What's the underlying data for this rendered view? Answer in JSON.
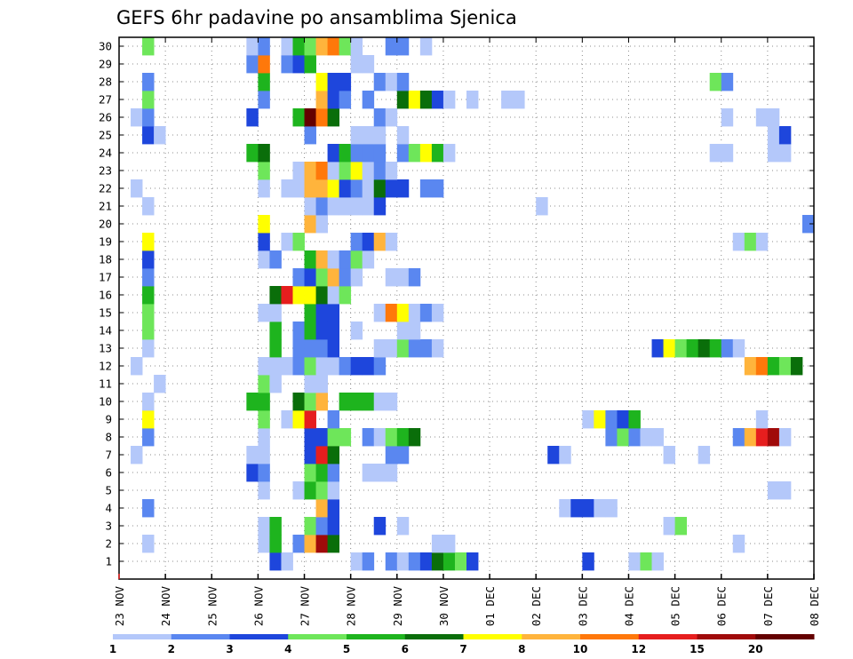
{
  "chart_data": {
    "type": "heatmap",
    "title": "GEFS 6hr padavine po ansamblima Sjenica",
    "xlabel": "",
    "ylabel": "",
    "x_tick_labels": [
      "23 NOV",
      "24 NOV",
      "25 NOV",
      "26 NOV",
      "27 NOV",
      "28 NOV",
      "29 NOV",
      "30 NOV",
      "01 DEC",
      "02 DEC",
      "03 DEC",
      "04 DEC",
      "05 DEC",
      "06 DEC",
      "07 DEC",
      "08 DEC"
    ],
    "y_tick_labels": [
      "1",
      "2",
      "3",
      "4",
      "5",
      "6",
      "7",
      "8",
      "9",
      "10",
      "11",
      "12",
      "13",
      "14",
      "15",
      "16",
      "17",
      "18",
      "19",
      "20",
      "21",
      "22",
      "23",
      "24",
      "25",
      "26",
      "27",
      "28",
      "29",
      "30"
    ],
    "x_range_steps": [
      0,
      60
    ],
    "y_range_members": [
      0,
      30
    ],
    "time_step_hours": 6,
    "grid": "dotted",
    "legend_placement": "bottom",
    "colorbar": {
      "labels": [
        "1",
        "2",
        "3",
        "4",
        "5",
        "6",
        "7",
        "8",
        "10",
        "12",
        "15",
        "20"
      ],
      "bin_colors": [
        "#b4c8fa",
        "#5a87f0",
        "#1e46dc",
        "#6ee65a",
        "#1eb41e",
        "#0a6e0a",
        "#ffff00",
        "#ffb43c",
        "#ff780a",
        "#e61e1e",
        "#a00a0a",
        "#640000"
      ]
    },
    "level_colors": [
      "#b4c8fa",
      "#5a87f0",
      "#1e46dc",
      "#6ee65a",
      "#1eb41e",
      "#0a6e0a",
      "#ffff00",
      "#ffb43c",
      "#ff780a",
      "#e61e1e",
      "#a00a0a",
      "#640000"
    ],
    "cells_format": "[member, time_step_index, level_index]",
    "cells": [
      [
        1,
        13,
        2
      ],
      [
        1,
        14,
        0
      ],
      [
        1,
        20,
        0
      ],
      [
        1,
        21,
        1
      ],
      [
        1,
        23,
        1
      ],
      [
        1,
        24,
        0
      ],
      [
        1,
        25,
        1
      ],
      [
        1,
        26,
        2
      ],
      [
        1,
        27,
        5
      ],
      [
        1,
        28,
        4
      ],
      [
        1,
        29,
        3
      ],
      [
        1,
        30,
        2
      ],
      [
        1,
        40,
        2
      ],
      [
        1,
        44,
        0
      ],
      [
        1,
        45,
        3
      ],
      [
        1,
        46,
        0
      ],
      [
        2,
        2,
        0
      ],
      [
        2,
        12,
        0
      ],
      [
        2,
        13,
        4
      ],
      [
        2,
        15,
        1
      ],
      [
        2,
        16,
        7
      ],
      [
        2,
        17,
        10
      ],
      [
        2,
        18,
        5
      ],
      [
        2,
        27,
        0
      ],
      [
        2,
        28,
        0
      ],
      [
        2,
        53,
        0
      ],
      [
        3,
        12,
        0
      ],
      [
        3,
        13,
        4
      ],
      [
        3,
        16,
        3
      ],
      [
        3,
        17,
        1
      ],
      [
        3,
        18,
        2
      ],
      [
        3,
        22,
        2
      ],
      [
        3,
        24,
        0
      ],
      [
        3,
        47,
        0
      ],
      [
        3,
        48,
        3
      ],
      [
        4,
        2,
        1
      ],
      [
        4,
        17,
        7
      ],
      [
        4,
        18,
        2
      ],
      [
        4,
        38,
        0
      ],
      [
        4,
        39,
        2
      ],
      [
        4,
        40,
        2
      ],
      [
        4,
        41,
        0
      ],
      [
        4,
        42,
        0
      ],
      [
        5,
        12,
        0
      ],
      [
        5,
        15,
        0
      ],
      [
        5,
        16,
        4
      ],
      [
        5,
        17,
        3
      ],
      [
        5,
        18,
        0
      ],
      [
        5,
        56,
        0
      ],
      [
        5,
        57,
        0
      ],
      [
        6,
        11,
        2
      ],
      [
        6,
        12,
        1
      ],
      [
        6,
        16,
        3
      ],
      [
        6,
        17,
        4
      ],
      [
        6,
        18,
        1
      ],
      [
        6,
        21,
        0
      ],
      [
        6,
        22,
        0
      ],
      [
        6,
        23,
        0
      ],
      [
        7,
        1,
        0
      ],
      [
        7,
        11,
        0
      ],
      [
        7,
        12,
        0
      ],
      [
        7,
        16,
        2
      ],
      [
        7,
        17,
        9
      ],
      [
        7,
        18,
        5
      ],
      [
        7,
        23,
        1
      ],
      [
        7,
        24,
        1
      ],
      [
        7,
        37,
        2
      ],
      [
        7,
        38,
        0
      ],
      [
        7,
        47,
        0
      ],
      [
        7,
        50,
        0
      ],
      [
        8,
        2,
        1
      ],
      [
        8,
        12,
        0
      ],
      [
        8,
        16,
        2
      ],
      [
        8,
        17,
        2
      ],
      [
        8,
        18,
        3
      ],
      [
        8,
        19,
        3
      ],
      [
        8,
        21,
        1
      ],
      [
        8,
        22,
        0
      ],
      [
        8,
        23,
        3
      ],
      [
        8,
        24,
        4
      ],
      [
        8,
        25,
        5
      ],
      [
        8,
        42,
        1
      ],
      [
        8,
        43,
        3
      ],
      [
        8,
        44,
        1
      ],
      [
        8,
        45,
        0
      ],
      [
        8,
        46,
        0
      ],
      [
        8,
        53,
        1
      ],
      [
        8,
        54,
        7
      ],
      [
        8,
        55,
        9
      ],
      [
        8,
        56,
        10
      ],
      [
        8,
        57,
        0
      ],
      [
        9,
        2,
        6
      ],
      [
        9,
        12,
        3
      ],
      [
        9,
        14,
        0
      ],
      [
        9,
        15,
        6
      ],
      [
        9,
        16,
        9
      ],
      [
        9,
        18,
        1
      ],
      [
        9,
        40,
        0
      ],
      [
        9,
        41,
        6
      ],
      [
        9,
        42,
        1
      ],
      [
        9,
        43,
        2
      ],
      [
        9,
        44,
        4
      ],
      [
        9,
        55,
        0
      ],
      [
        10,
        2,
        0
      ],
      [
        10,
        11,
        4
      ],
      [
        10,
        12,
        4
      ],
      [
        10,
        15,
        5
      ],
      [
        10,
        16,
        3
      ],
      [
        10,
        17,
        7
      ],
      [
        10,
        19,
        4
      ],
      [
        10,
        20,
        4
      ],
      [
        10,
        21,
        4
      ],
      [
        10,
        22,
        0
      ],
      [
        10,
        23,
        0
      ],
      [
        11,
        3,
        0
      ],
      [
        11,
        12,
        3
      ],
      [
        11,
        13,
        0
      ],
      [
        11,
        16,
        0
      ],
      [
        11,
        17,
        0
      ],
      [
        12,
        1,
        0
      ],
      [
        12,
        12,
        0
      ],
      [
        12,
        13,
        0
      ],
      [
        12,
        14,
        0
      ],
      [
        12,
        15,
        1
      ],
      [
        12,
        16,
        3
      ],
      [
        12,
        17,
        0
      ],
      [
        12,
        18,
        0
      ],
      [
        12,
        19,
        1
      ],
      [
        12,
        20,
        2
      ],
      [
        12,
        21,
        2
      ],
      [
        12,
        22,
        1
      ],
      [
        12,
        54,
        7
      ],
      [
        12,
        55,
        8
      ],
      [
        12,
        56,
        4
      ],
      [
        12,
        57,
        3
      ],
      [
        12,
        58,
        5
      ],
      [
        13,
        2,
        0
      ],
      [
        13,
        13,
        4
      ],
      [
        13,
        15,
        1
      ],
      [
        13,
        16,
        1
      ],
      [
        13,
        17,
        1
      ],
      [
        13,
        18,
        2
      ],
      [
        13,
        22,
        0
      ],
      [
        13,
        23,
        0
      ],
      [
        13,
        24,
        3
      ],
      [
        13,
        25,
        1
      ],
      [
        13,
        26,
        1
      ],
      [
        13,
        27,
        0
      ],
      [
        13,
        46,
        2
      ],
      [
        13,
        47,
        6
      ],
      [
        13,
        48,
        3
      ],
      [
        13,
        49,
        4
      ],
      [
        13,
        50,
        5
      ],
      [
        13,
        51,
        4
      ],
      [
        13,
        52,
        1
      ],
      [
        13,
        53,
        0
      ],
      [
        14,
        2,
        3
      ],
      [
        14,
        13,
        4
      ],
      [
        14,
        15,
        1
      ],
      [
        14,
        16,
        4
      ],
      [
        14,
        17,
        2
      ],
      [
        14,
        18,
        2
      ],
      [
        14,
        20,
        0
      ],
      [
        14,
        24,
        0
      ],
      [
        14,
        25,
        0
      ],
      [
        15,
        2,
        3
      ],
      [
        15,
        12,
        0
      ],
      [
        15,
        13,
        0
      ],
      [
        15,
        16,
        4
      ],
      [
        15,
        17,
        2
      ],
      [
        15,
        18,
        2
      ],
      [
        15,
        22,
        0
      ],
      [
        15,
        23,
        8
      ],
      [
        15,
        24,
        6
      ],
      [
        15,
        25,
        0
      ],
      [
        15,
        26,
        1
      ],
      [
        15,
        27,
        0
      ],
      [
        16,
        2,
        4
      ],
      [
        16,
        13,
        5
      ],
      [
        16,
        14,
        9
      ],
      [
        16,
        15,
        6
      ],
      [
        16,
        16,
        6
      ],
      [
        16,
        17,
        5
      ],
      [
        16,
        18,
        0
      ],
      [
        16,
        19,
        3
      ],
      [
        17,
        2,
        1
      ],
      [
        17,
        15,
        1
      ],
      [
        17,
        16,
        2
      ],
      [
        17,
        17,
        3
      ],
      [
        17,
        18,
        7
      ],
      [
        17,
        19,
        1
      ],
      [
        17,
        20,
        0
      ],
      [
        17,
        23,
        0
      ],
      [
        17,
        24,
        0
      ],
      [
        17,
        25,
        1
      ],
      [
        18,
        2,
        2
      ],
      [
        18,
        12,
        0
      ],
      [
        18,
        13,
        1
      ],
      [
        18,
        16,
        4
      ],
      [
        18,
        17,
        7
      ],
      [
        18,
        18,
        0
      ],
      [
        18,
        19,
        1
      ],
      [
        18,
        20,
        3
      ],
      [
        18,
        21,
        0
      ],
      [
        19,
        2,
        6
      ],
      [
        19,
        12,
        2
      ],
      [
        19,
        14,
        0
      ],
      [
        19,
        15,
        3
      ],
      [
        19,
        20,
        1
      ],
      [
        19,
        21,
        2
      ],
      [
        19,
        22,
        7
      ],
      [
        19,
        23,
        0
      ],
      [
        19,
        53,
        0
      ],
      [
        19,
        54,
        3
      ],
      [
        19,
        55,
        0
      ],
      [
        20,
        12,
        6
      ],
      [
        20,
        16,
        7
      ],
      [
        20,
        17,
        0
      ],
      [
        20,
        59,
        1
      ],
      [
        21,
        2,
        0
      ],
      [
        21,
        16,
        0
      ],
      [
        21,
        17,
        1
      ],
      [
        21,
        18,
        0
      ],
      [
        21,
        19,
        0
      ],
      [
        21,
        20,
        0
      ],
      [
        21,
        21,
        0
      ],
      [
        21,
        22,
        2
      ],
      [
        21,
        36,
        0
      ],
      [
        22,
        1,
        0
      ],
      [
        22,
        12,
        0
      ],
      [
        22,
        14,
        0
      ],
      [
        22,
        15,
        0
      ],
      [
        22,
        16,
        7
      ],
      [
        22,
        17,
        7
      ],
      [
        22,
        18,
        6
      ],
      [
        22,
        19,
        2
      ],
      [
        22,
        20,
        1
      ],
      [
        22,
        21,
        0
      ],
      [
        22,
        22,
        5
      ],
      [
        22,
        23,
        2
      ],
      [
        22,
        24,
        2
      ],
      [
        22,
        26,
        1
      ],
      [
        22,
        27,
        1
      ],
      [
        23,
        12,
        3
      ],
      [
        23,
        15,
        0
      ],
      [
        23,
        16,
        7
      ],
      [
        23,
        17,
        8
      ],
      [
        23,
        18,
        0
      ],
      [
        23,
        19,
        3
      ],
      [
        23,
        20,
        6
      ],
      [
        23,
        21,
        0
      ],
      [
        23,
        22,
        1
      ],
      [
        23,
        23,
        0
      ],
      [
        24,
        11,
        4
      ],
      [
        24,
        12,
        5
      ],
      [
        24,
        18,
        2
      ],
      [
        24,
        19,
        4
      ],
      [
        24,
        20,
        1
      ],
      [
        24,
        21,
        1
      ],
      [
        24,
        22,
        1
      ],
      [
        24,
        24,
        1
      ],
      [
        24,
        25,
        3
      ],
      [
        24,
        26,
        6
      ],
      [
        24,
        27,
        4
      ],
      [
        24,
        28,
        0
      ],
      [
        24,
        51,
        0
      ],
      [
        24,
        52,
        0
      ],
      [
        24,
        56,
        0
      ],
      [
        24,
        57,
        0
      ],
      [
        25,
        2,
        2
      ],
      [
        25,
        3,
        0
      ],
      [
        25,
        16,
        1
      ],
      [
        25,
        20,
        0
      ],
      [
        25,
        21,
        0
      ],
      [
        25,
        22,
        0
      ],
      [
        25,
        24,
        0
      ],
      [
        25,
        56,
        0
      ],
      [
        25,
        57,
        2
      ],
      [
        26,
        1,
        0
      ],
      [
        26,
        2,
        1
      ],
      [
        26,
        11,
        2
      ],
      [
        26,
        15,
        4
      ],
      [
        26,
        16,
        11
      ],
      [
        26,
        17,
        8
      ],
      [
        26,
        18,
        5
      ],
      [
        26,
        22,
        1
      ],
      [
        26,
        23,
        0
      ],
      [
        26,
        52,
        0
      ],
      [
        26,
        55,
        0
      ],
      [
        26,
        56,
        0
      ],
      [
        27,
        2,
        3
      ],
      [
        27,
        12,
        1
      ],
      [
        27,
        17,
        7
      ],
      [
        27,
        18,
        2
      ],
      [
        27,
        19,
        1
      ],
      [
        27,
        21,
        1
      ],
      [
        27,
        24,
        5
      ],
      [
        27,
        25,
        6
      ],
      [
        27,
        26,
        5
      ],
      [
        27,
        27,
        2
      ],
      [
        27,
        28,
        0
      ],
      [
        27,
        30,
        0
      ],
      [
        27,
        33,
        0
      ],
      [
        27,
        34,
        0
      ],
      [
        28,
        2,
        1
      ],
      [
        28,
        12,
        4
      ],
      [
        28,
        17,
        6
      ],
      [
        28,
        18,
        2
      ],
      [
        28,
        19,
        2
      ],
      [
        28,
        22,
        1
      ],
      [
        28,
        23,
        0
      ],
      [
        28,
        24,
        1
      ],
      [
        28,
        51,
        3
      ],
      [
        28,
        52,
        1
      ],
      [
        29,
        11,
        1
      ],
      [
        29,
        12,
        8
      ],
      [
        29,
        14,
        1
      ],
      [
        29,
        15,
        2
      ],
      [
        29,
        16,
        4
      ],
      [
        29,
        20,
        0
      ],
      [
        29,
        21,
        0
      ],
      [
        30,
        2,
        3
      ],
      [
        30,
        11,
        0
      ],
      [
        30,
        12,
        1
      ],
      [
        30,
        14,
        0
      ],
      [
        30,
        15,
        4
      ],
      [
        30,
        16,
        3
      ],
      [
        30,
        17,
        7
      ],
      [
        30,
        18,
        8
      ],
      [
        30,
        19,
        3
      ],
      [
        30,
        20,
        0
      ],
      [
        30,
        23,
        1
      ],
      [
        30,
        24,
        1
      ],
      [
        30,
        26,
        0
      ]
    ]
  }
}
